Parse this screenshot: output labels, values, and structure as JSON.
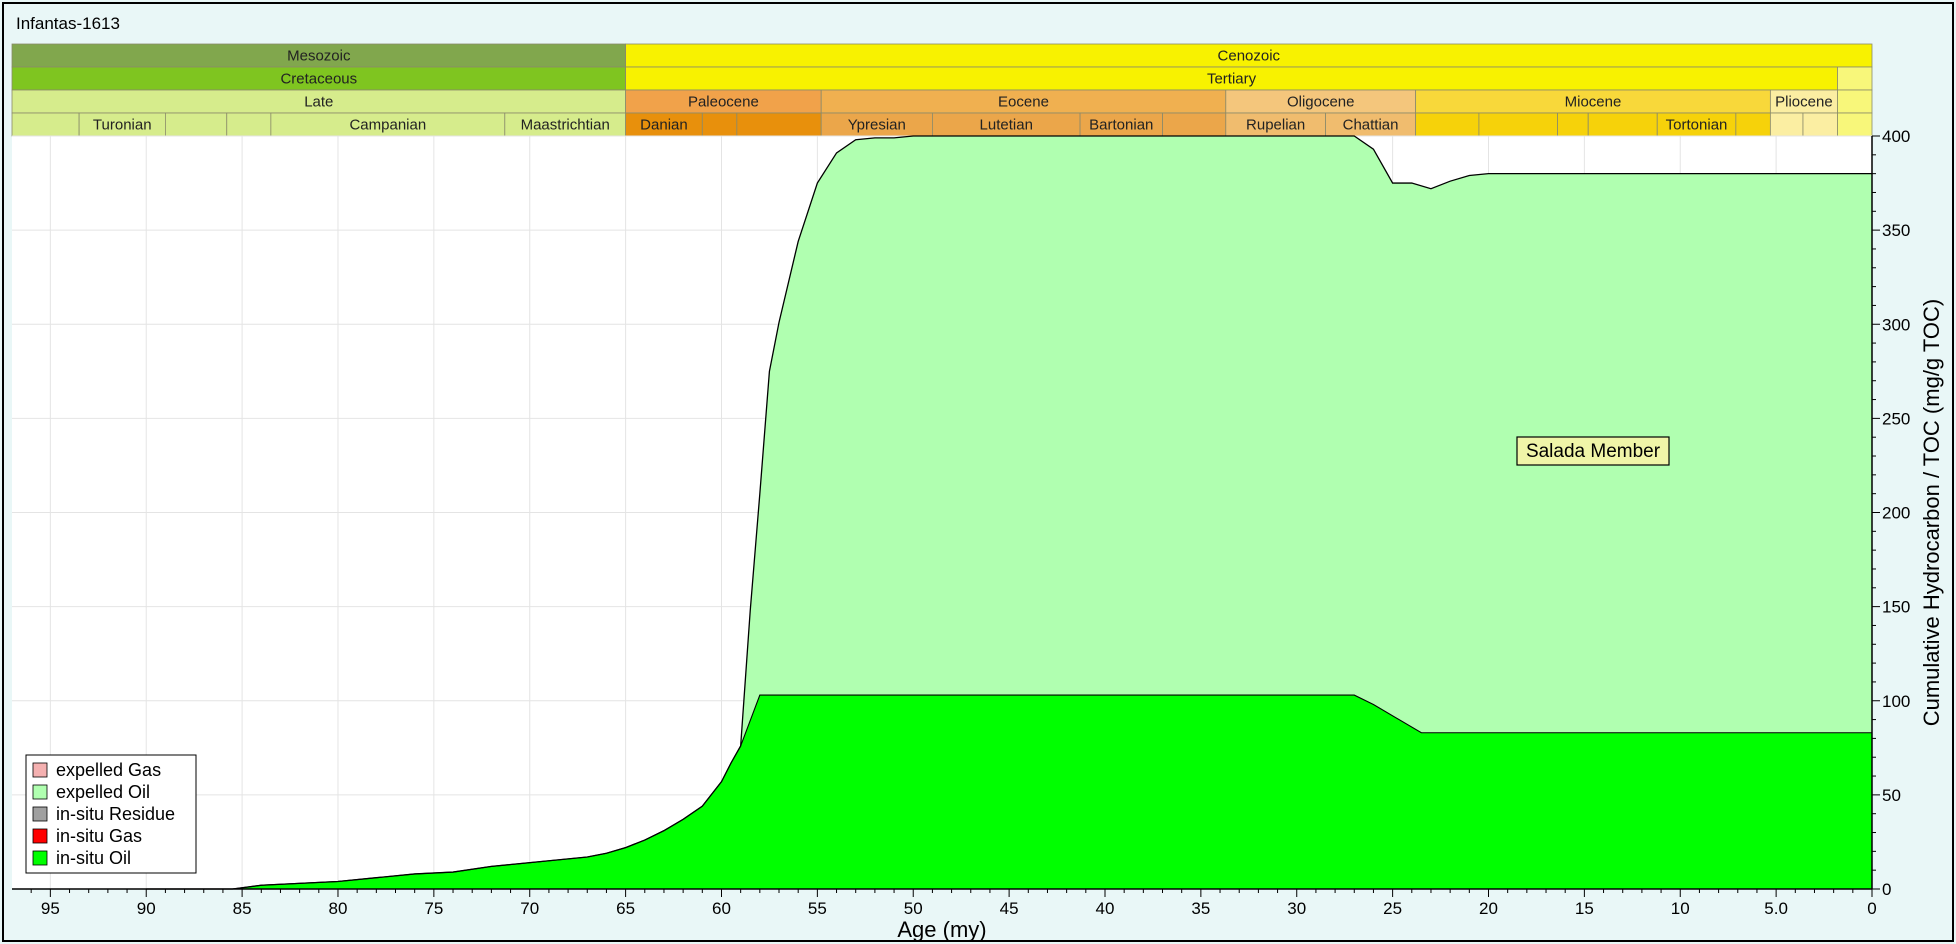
{
  "window": {
    "title": "Infantas-1613"
  },
  "chart_data": {
    "type": "area",
    "xlabel": "Age (my)",
    "ylabel": "Cumulative Hydrocarbon / TOC (mg/g TOC)",
    "xlim": [
      97,
      0
    ],
    "ylim": [
      0,
      400
    ],
    "x_ticks": [
      95,
      90,
      85,
      80,
      75,
      70,
      65,
      60,
      55,
      50,
      45,
      40,
      35,
      30,
      25,
      20,
      15,
      10,
      5,
      0
    ],
    "x_tick_labels": [
      "95",
      "90",
      "85",
      "80",
      "75",
      "70",
      "65",
      "60",
      "55",
      "50",
      "45",
      "40",
      "35",
      "30",
      "25",
      "20",
      "15",
      "10",
      "5.0",
      "0"
    ],
    "y_ticks": [
      0,
      50,
      100,
      150,
      200,
      250,
      300,
      350,
      400
    ],
    "grid": true,
    "legend_position": "bottom-left",
    "annotation": "Salada Member",
    "legend": [
      {
        "name": "expelled Gas",
        "color": "#f4b0b0"
      },
      {
        "name": "expelled Oil",
        "color": "#b0ffb0"
      },
      {
        "name": "in-situ Residue",
        "color": "#a0a0a0"
      },
      {
        "name": "in-situ Gas",
        "color": "#ff0000"
      },
      {
        "name": "in-situ Oil",
        "color": "#00ff00"
      }
    ],
    "series": [
      {
        "name": "in-situ Oil",
        "color": "#00ff00",
        "x": [
          90,
          85.5,
          84,
          82,
          80,
          78,
          76,
          74,
          72,
          70,
          68,
          67,
          66,
          65,
          64,
          63,
          62,
          61,
          60,
          59.5,
          59,
          58,
          55,
          50,
          45,
          40,
          35,
          30,
          27,
          26,
          23.5,
          20,
          15,
          10,
          5,
          0
        ],
        "y": [
          0,
          0,
          2,
          3,
          4,
          6,
          8,
          9,
          12,
          14,
          16,
          17,
          19,
          22,
          26,
          31,
          37,
          44,
          57,
          67,
          76,
          103,
          103,
          103,
          103,
          103,
          103,
          103,
          103,
          98,
          83,
          83,
          83,
          83,
          83,
          83
        ]
      },
      {
        "name": "expelled Oil",
        "color": "#b0ffb0",
        "x": [
          59.5,
          59,
          58.5,
          58,
          57.5,
          57,
          56,
          55,
          54,
          53,
          52,
          51,
          50,
          48,
          45,
          42,
          40,
          35,
          30,
          27,
          26,
          25,
          24,
          23,
          22,
          21,
          20,
          15,
          10,
          5,
          0
        ],
        "y": [
          0,
          0,
          45,
          107,
          172,
          198,
          241,
          272,
          288,
          295,
          296,
          296,
          297,
          297,
          297,
          297,
          297,
          297,
          297,
          297,
          295,
          292,
          292,
          289,
          293,
          296,
          297,
          297,
          297,
          297,
          297
        ]
      }
    ],
    "total": {
      "name": "total",
      "x": [
        90,
        85.5,
        84,
        82,
        80,
        78,
        76,
        74,
        72,
        70,
        68,
        67,
        66,
        65,
        64,
        63,
        62,
        61,
        60,
        59.5,
        59,
        58.5,
        58,
        57.5,
        57,
        56,
        55,
        54,
        53,
        52,
        51,
        50,
        48,
        45,
        42,
        40,
        35,
        30,
        27,
        26,
        25,
        24,
        23,
        22,
        21,
        20,
        15,
        10,
        5,
        0
      ],
      "y": [
        0,
        0,
        2,
        3,
        4,
        6,
        8,
        9,
        12,
        14,
        16,
        17,
        19,
        22,
        26,
        31,
        37,
        44,
        57,
        67,
        76,
        148,
        210,
        275,
        301,
        344,
        375,
        391,
        398,
        399,
        399,
        400,
        400,
        400,
        400,
        400,
        400,
        400,
        400,
        393,
        375,
        375,
        372,
        376,
        379,
        380,
        380,
        380,
        380,
        380
      ]
    },
    "timescale": {
      "xlim": [
        97,
        0
      ],
      "rows": [
        [
          {
            "label": "Mesozoic",
            "start": 97,
            "end": 65,
            "color": "#81a74d"
          },
          {
            "label": "Cenozoic",
            "start": 65,
            "end": 0,
            "color": "#f8f200"
          }
        ],
        [
          {
            "label": "Cretaceous",
            "start": 97,
            "end": 65,
            "color": "#7fc520"
          },
          {
            "label": "Tertiary",
            "start": 65,
            "end": 1.8,
            "color": "#f8f200"
          },
          {
            "label": "",
            "start": 1.8,
            "end": 0,
            "color": "#f8f77a"
          }
        ],
        [
          {
            "label": "Late",
            "start": 97,
            "end": 65,
            "color": "#d6ec8c"
          },
          {
            "label": "Paleocene",
            "start": 65,
            "end": 54.8,
            "color": "#f1a24a"
          },
          {
            "label": "Eocene",
            "start": 54.8,
            "end": 33.7,
            "color": "#f0b050"
          },
          {
            "label": "Oligocene",
            "start": 33.7,
            "end": 23.8,
            "color": "#f4c67c"
          },
          {
            "label": "Miocene",
            "start": 23.8,
            "end": 5.3,
            "color": "#f8d83a"
          },
          {
            "label": "Pliocene",
            "start": 5.3,
            "end": 1.8,
            "color": "#fbeea2"
          },
          {
            "label": "",
            "start": 1.8,
            "end": 0,
            "color": "#f8f77a"
          }
        ],
        [
          {
            "label": "",
            "start": 97,
            "end": 93.5,
            "color": "#d6ec8c"
          },
          {
            "label": "Turonian",
            "start": 93.5,
            "end": 89,
            "color": "#d6ec8c"
          },
          {
            "label": "",
            "start": 89,
            "end": 85.8,
            "color": "#d6ec8c"
          },
          {
            "label": "",
            "start": 85.8,
            "end": 83.5,
            "color": "#d6ec8c"
          },
          {
            "label": "Campanian",
            "start": 83.5,
            "end": 71.3,
            "color": "#d6ec8c"
          },
          {
            "label": "Maastrichtian",
            "start": 71.3,
            "end": 65,
            "color": "#d6ec8c"
          },
          {
            "label": "Danian",
            "start": 65,
            "end": 61,
            "color": "#e8900c"
          },
          {
            "label": "",
            "start": 61,
            "end": 59.2,
            "color": "#e8900c"
          },
          {
            "label": "",
            "start": 59.2,
            "end": 54.8,
            "color": "#e8900c"
          },
          {
            "label": "Ypresian",
            "start": 54.8,
            "end": 49,
            "color": "#eba64a"
          },
          {
            "label": "Lutetian",
            "start": 49,
            "end": 41.3,
            "color": "#eba64a"
          },
          {
            "label": "Bartonian",
            "start": 41.3,
            "end": 37,
            "color": "#eba64a"
          },
          {
            "label": "",
            "start": 37,
            "end": 33.7,
            "color": "#eba64a"
          },
          {
            "label": "Rupelian",
            "start": 33.7,
            "end": 28.5,
            "color": "#f0bc6e"
          },
          {
            "label": "Chattian",
            "start": 28.5,
            "end": 23.8,
            "color": "#f0bc6e"
          },
          {
            "label": "",
            "start": 23.8,
            "end": 20.5,
            "color": "#f6d20a"
          },
          {
            "label": "",
            "start": 20.5,
            "end": 16.4,
            "color": "#f6d20a"
          },
          {
            "label": "",
            "start": 16.4,
            "end": 14.8,
            "color": "#f6d20a"
          },
          {
            "label": "",
            "start": 14.8,
            "end": 11.2,
            "color": "#f6d20a"
          },
          {
            "label": "Tortonian",
            "start": 11.2,
            "end": 7.1,
            "color": "#f6d20a"
          },
          {
            "label": "",
            "start": 7.1,
            "end": 5.3,
            "color": "#f6d20a"
          },
          {
            "label": "",
            "start": 5.3,
            "end": 3.6,
            "color": "#fbeea2"
          },
          {
            "label": "",
            "start": 3.6,
            "end": 1.8,
            "color": "#fbeea2"
          },
          {
            "label": "",
            "start": 1.8,
            "end": 0,
            "color": "#f8f77a"
          }
        ]
      ]
    }
  }
}
